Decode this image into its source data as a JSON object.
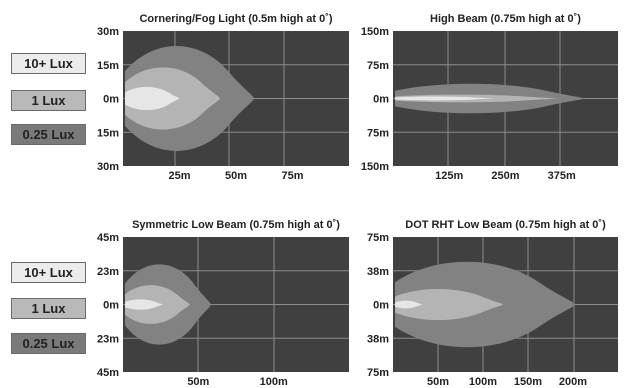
{
  "legend_top": [
    "10+ Lux",
    "1 Lux",
    "0.25 Lux"
  ],
  "legend_bottom": [
    "10+ Lux",
    "1 Lux",
    "0.25 Lux"
  ],
  "colors": {
    "bg": "#404040",
    "grid": "#8c8c8c",
    "zone_025": "#828282",
    "zone_1": "#b4b4b4",
    "zone_10": "#e6e6e6"
  },
  "chart_data": [
    {
      "type": "area",
      "title": "Cornering/Fog Light (0.5m high at 0˚)",
      "y_ticks": [
        "30m",
        "15m",
        "0m",
        "15m",
        "30m"
      ],
      "x_ticks": [
        "25m",
        "50m",
        "75m"
      ],
      "xlim": [
        0,
        100
      ],
      "ylim": [
        -30,
        30
      ],
      "grid": true,
      "series": [
        {
          "name": "0.25 Lux",
          "reach_m": 57,
          "half_width_m": 27
        },
        {
          "name": "1 Lux",
          "reach_m": 42,
          "half_width_m": 16
        },
        {
          "name": "10+ Lux",
          "reach_m": 24,
          "half_width_m": 6
        }
      ]
    },
    {
      "type": "area",
      "title": "High Beam (0.75m high at 0˚)",
      "y_ticks": [
        "150m",
        "75m",
        "0m",
        "75m",
        "150m"
      ],
      "x_ticks": [
        "125m",
        "250m",
        "375m"
      ],
      "xlim": [
        0,
        500
      ],
      "ylim": [
        -150,
        150
      ],
      "grid": true,
      "series": [
        {
          "name": "0.25 Lux",
          "reach_m": 420,
          "half_width_m": 38
        },
        {
          "name": "1 Lux",
          "reach_m": 360,
          "half_width_m": 10
        },
        {
          "name": "10+ Lux",
          "reach_m": 220,
          "half_width_m": 5
        }
      ]
    },
    {
      "type": "area",
      "title": "Symmetric Low Beam (0.75m high at 0˚)",
      "y_ticks": [
        "45m",
        "23m",
        "0m",
        "23m",
        "45m"
      ],
      "x_ticks": [
        "50m",
        "100m"
      ],
      "xlim": [
        0,
        150
      ],
      "ylim": [
        -45,
        45
      ],
      "grid": true,
      "series": [
        {
          "name": "0.25 Lux",
          "reach_m": 57,
          "half_width_m": 31
        },
        {
          "name": "1 Lux",
          "reach_m": 43,
          "half_width_m": 15
        },
        {
          "name": "10+ Lux",
          "reach_m": 25,
          "half_width_m": 4
        }
      ]
    },
    {
      "type": "area",
      "title": "DOT RHT Low Beam (0.75m high at 0˚)",
      "y_ticks": [
        "75m",
        "38m",
        "0m",
        "38m",
        "75m"
      ],
      "x_ticks": [
        "50m",
        "100m",
        "150m",
        "200m"
      ],
      "xlim": [
        0,
        250
      ],
      "ylim": [
        -75,
        75
      ],
      "grid": true,
      "series": [
        {
          "name": "0.25 Lux",
          "reach_m": 200,
          "half_width_m": 55
        },
        {
          "name": "1 Lux",
          "reach_m": 120,
          "half_width_m": 20
        },
        {
          "name": "10+ Lux",
          "reach_m": 30,
          "half_width_m": 5
        }
      ]
    }
  ]
}
